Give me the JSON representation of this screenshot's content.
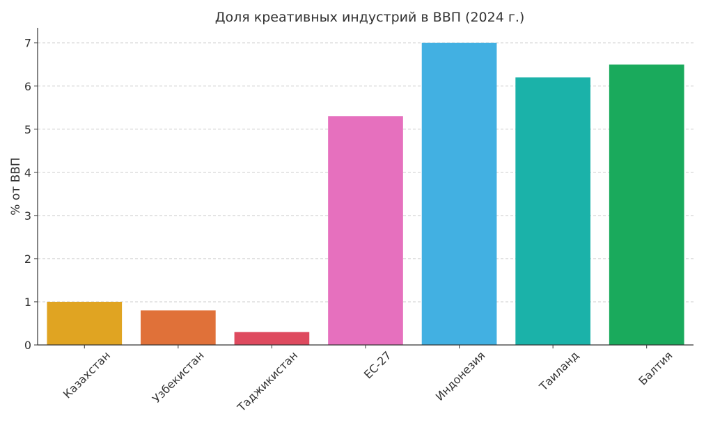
{
  "chart_data": {
    "type": "bar",
    "title": "Доля креативных индустрий в ВВП (2024 г.)",
    "xlabel": "",
    "ylabel": "% от ВВП",
    "categories": [
      "Казахстан",
      "Узбекистан",
      "Таджикистан",
      "ЕС-27",
      "Индонезия",
      "Таиланд",
      "Балтия"
    ],
    "values": [
      1.0,
      0.8,
      0.3,
      5.3,
      7.0,
      6.2,
      6.5
    ],
    "colors": [
      "#e0a422",
      "#e07139",
      "#de4a5f",
      "#e670be",
      "#42b0e2",
      "#1bb2a9",
      "#1aaa5c"
    ],
    "ylim": [
      0,
      7.35
    ],
    "yticks": [
      0,
      1,
      2,
      3,
      4,
      5,
      6,
      7
    ],
    "grid": true,
    "grid_axis": "y",
    "legend": "none"
  }
}
